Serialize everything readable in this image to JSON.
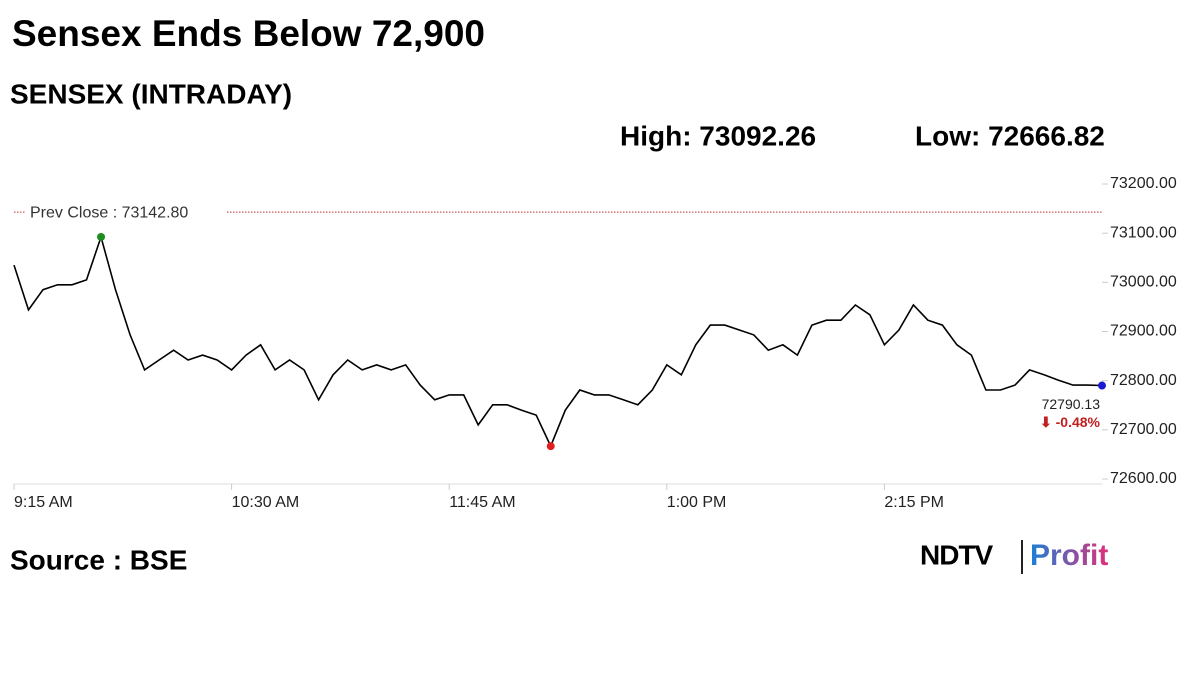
{
  "chart_data": {
    "type": "line",
    "title": "Sensex Ends Below 72,900",
    "subtitle": "SENSEX (INTRADAY)",
    "high_label": "High: 73092.26",
    "low_label": "Low: 72666.82",
    "prev_close": 73142.8,
    "prev_close_label": "Prev Close : 73142.80",
    "change_label": "⬇ -0.48%",
    "x": [
      "9:15 AM",
      "9:20 AM",
      "9:25 AM",
      "9:30 AM",
      "9:35 AM",
      "9:40 AM",
      "9:45 AM",
      "9:50 AM",
      "9:55 AM",
      "10:00 AM",
      "10:05 AM",
      "10:10 AM",
      "10:15 AM",
      "10:20 AM",
      "10:25 AM",
      "10:30 AM",
      "10:35 AM",
      "10:40 AM",
      "10:45 AM",
      "10:50 AM",
      "10:55 AM",
      "11:00 AM",
      "11:05 AM",
      "11:10 AM",
      "11:15 AM",
      "11:20 AM",
      "11:25 AM",
      "11:30 AM",
      "11:35 AM",
      "11:40 AM",
      "11:45 AM",
      "11:50 AM",
      "11:55 AM",
      "12:00 PM",
      "12:05 PM",
      "12:10 PM",
      "12:15 PM",
      "12:20 PM",
      "12:25 PM",
      "12:30 PM",
      "12:35 PM",
      "12:40 PM",
      "12:45 PM",
      "12:50 PM",
      "12:55 PM",
      "1:00 PM",
      "1:05 PM",
      "1:10 PM",
      "1:15 PM",
      "1:20 PM",
      "1:25 PM",
      "1:30 PM",
      "1:35 PM",
      "1:40 PM",
      "1:45 PM",
      "1:50 PM",
      "1:55 PM",
      "2:00 PM",
      "2:05 PM",
      "2:10 PM",
      "2:15 PM",
      "2:20 PM",
      "2:25 PM",
      "2:30 PM",
      "2:35 PM",
      "2:40 PM",
      "2:45 PM",
      "2:50 PM",
      "2:55 PM",
      "3:00 PM",
      "3:05 PM",
      "3:10 PM",
      "3:15 PM",
      "3:20 PM",
      "3:25 PM",
      "3:30 PM"
    ],
    "series": [
      {
        "name": "SENSEX",
        "color": "#000000",
        "values": [
          73035,
          72944,
          72985,
          72995,
          72995,
          73005,
          73092.26,
          72985,
          72893,
          72822,
          72842,
          72862,
          72842,
          72852,
          72842,
          72822,
          72852,
          72873,
          72822,
          72842,
          72822,
          72761,
          72812,
          72842,
          72822,
          72832,
          72822,
          72832,
          72791,
          72761,
          72771,
          72771,
          72710,
          72751,
          72751,
          72740,
          72730,
          72666.82,
          72740,
          72781,
          72771,
          72771,
          72761,
          72751,
          72781,
          72832,
          72812,
          72873,
          72913,
          72913,
          72903,
          72893,
          72862,
          72873,
          72852,
          72913,
          72923,
          72923,
          72954,
          72934,
          72873,
          72903,
          72954,
          72923,
          72913,
          72873,
          72852,
          72781,
          72781,
          72791,
          72822,
          72812,
          72801,
          72791,
          72791,
          72790.13
        ]
      }
    ],
    "high_color": "#1e8c1e",
    "low_color": "#e02020",
    "last_color": "#1a1ad0",
    "prev_close_color": "#c03030",
    "change_color": "#c02020",
    "xticks": [
      "9:15 AM",
      "10:30 AM",
      "11:45 AM",
      "1:00 PM",
      "2:15 PM"
    ],
    "ylim": [
      72600,
      73200
    ],
    "yticks": [
      {
        "value": 72600,
        "label": "72600.00"
      },
      {
        "value": 72700,
        "label": "72700.00"
      },
      {
        "value": 72800,
        "label": "72800.00"
      },
      {
        "value": 72900,
        "label": "72900.00"
      },
      {
        "value": 73000,
        "label": "73000.00"
      },
      {
        "value": 73100,
        "label": "73100.00"
      },
      {
        "value": 73200,
        "label": "73200.00"
      }
    ]
  },
  "source": "Source : BSE",
  "logo": {
    "brand": "NDTV",
    "product": "Profit"
  }
}
